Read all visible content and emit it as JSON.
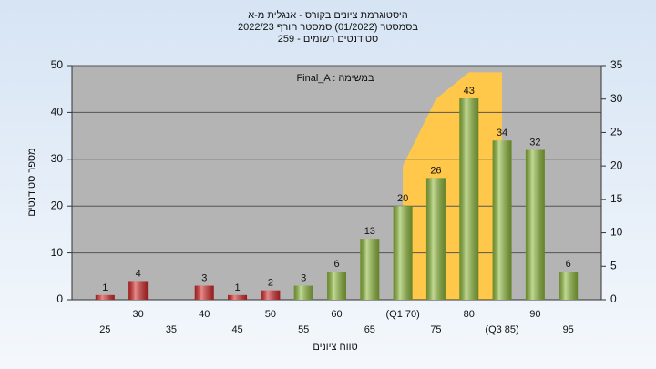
{
  "chart_data": {
    "type": "bar",
    "title": [
      "היסטוגרמת ציונים בקורס - אנגלית מ-א",
      "בסמסטר  (01/2022)  סמסטר חורף 2022/23",
      "סטודנטים רשומים - 259"
    ],
    "annotation": "Final_A : במשימה",
    "y_label": "מספר סטודנטים",
    "x_label": "טווח ציונים",
    "categories": [
      "25",
      "30",
      "35",
      "40",
      "45",
      "50",
      "55",
      "60",
      "65",
      "(Q1 70)",
      "75",
      "80",
      "(Q3 85)",
      "90",
      "95"
    ],
    "values": [
      1,
      4,
      null,
      3,
      1,
      2,
      3,
      6,
      13,
      20,
      26,
      43,
      34,
      32,
      6
    ],
    "colors": [
      "#d42b2b",
      "#d42b2b",
      "#d42b2b",
      "#d42b2b",
      "#d42b2b",
      "#d42b2b",
      "#8fba3c",
      "#8fba3c",
      "#8fba3c",
      "#8fba3c",
      "#8fba3c",
      "#8fba3c",
      "#8fba3c",
      "#8fba3c",
      "#8fba3c"
    ],
    "area": {
      "color": "#ffc84a",
      "axis": "y2",
      "values": [
        null,
        null,
        null,
        null,
        null,
        null,
        null,
        null,
        null,
        20,
        30,
        34,
        34,
        null,
        null
      ]
    },
    "ylim": [
      0,
      50
    ],
    "yticks": [
      0,
      10,
      20,
      30,
      40,
      50
    ],
    "y2lim": [
      0,
      35
    ],
    "y2ticks": [
      0,
      5,
      10,
      15,
      20,
      25,
      30,
      35
    ],
    "grid": true
  }
}
